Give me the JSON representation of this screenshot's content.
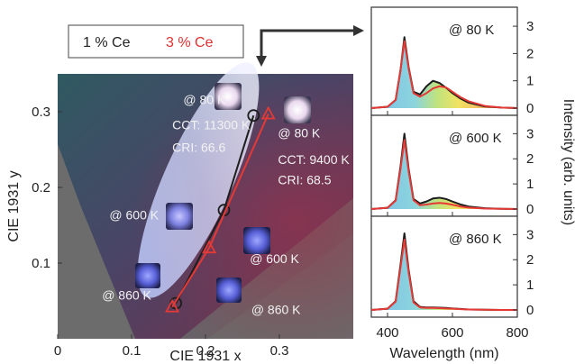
{
  "legend": {
    "items": [
      {
        "label": "1 % Ce",
        "color": "#222222"
      },
      {
        "label": "3 % Ce",
        "color": "#e03030"
      }
    ]
  },
  "colors": {
    "series_1pct": "#1e1e1e",
    "series_3pct": "#e53935",
    "plot_bg": "#6a6a6a"
  },
  "chart_data": [
    {
      "type": "scatter",
      "xlabel": "CIE 1931 x",
      "ylabel": "CIE 1931 y",
      "xlim": [
        0,
        0.4
      ],
      "ylim": [
        0,
        0.35
      ],
      "x_ticks": [
        0,
        0.1,
        0.2,
        0.3
      ],
      "x_tick_labels": [
        "0",
        "0.1",
        "0.2",
        "0.3"
      ],
      "y_ticks": [
        0.1,
        0.2,
        0.3
      ],
      "y_tick_labels": [
        "0.1",
        "0.2",
        "0.3"
      ],
      "series": [
        {
          "name": "1 % Ce",
          "marker": "circle",
          "x": [
            0.16,
            0.225,
            0.265
          ],
          "y": [
            0.047,
            0.17,
            0.295
          ]
        },
        {
          "name": "3 % Ce",
          "marker": "triangle",
          "x": [
            0.155,
            0.205,
            0.285
          ],
          "y": [
            0.042,
            0.12,
            0.297
          ]
        }
      ],
      "annotations": [
        {
          "text": "@ 80 K",
          "x": 0.17,
          "y": 0.31
        },
        {
          "text": "CCT: 11300 K",
          "x": 0.155,
          "y": 0.277
        },
        {
          "text": "CRI: 66.6",
          "x": 0.155,
          "y": 0.247
        },
        {
          "text": "@ 80 K",
          "x": 0.298,
          "y": 0.266
        },
        {
          "text": "CCT: 9400 K",
          "x": 0.298,
          "y": 0.231
        },
        {
          "text": "CRI: 68.5",
          "x": 0.298,
          "y": 0.204
        },
        {
          "text": "@ 600 K",
          "x": 0.07,
          "y": 0.158
        },
        {
          "text": "@ 600 K",
          "x": 0.26,
          "y": 0.1
        },
        {
          "text": "@ 860 K",
          "x": 0.06,
          "y": 0.052
        },
        {
          "text": "@ 860 K",
          "x": 0.262,
          "y": 0.033
        }
      ]
    },
    {
      "type": "line",
      "xlabel": "Wavelength (nm)",
      "ylabel": "Intensity (arb. units)",
      "xlim": [
        350,
        800
      ],
      "x_ticks": [
        400,
        600,
        800
      ],
      "panels": [
        {
          "label": "@ 80 K",
          "ylim": [
            0,
            3.3
          ],
          "y_ticks": [
            0,
            1,
            2,
            3
          ],
          "x": [
            350,
            400,
            425,
            440,
            452,
            465,
            480,
            500,
            520,
            540,
            560,
            580,
            600,
            625,
            650,
            700,
            750,
            800
          ],
          "series": [
            {
              "name": "1 % Ce",
              "values": [
                0,
                0.05,
                0.3,
                1.4,
                2.6,
                1.5,
                0.6,
                0.5,
                0.8,
                1.0,
                0.92,
                0.75,
                0.55,
                0.35,
                0.2,
                0.06,
                0.02,
                0
              ]
            },
            {
              "name": "3 % Ce",
              "values": [
                0,
                0.05,
                0.3,
                1.4,
                2.45,
                1.45,
                0.55,
                0.42,
                0.55,
                0.72,
                0.8,
                0.76,
                0.6,
                0.4,
                0.25,
                0.08,
                0.02,
                0
              ]
            }
          ]
        },
        {
          "label": "@ 600 K",
          "ylim": [
            0,
            3.3
          ],
          "y_ticks": [
            0,
            1,
            2,
            3
          ],
          "x": [
            350,
            400,
            425,
            440,
            452,
            465,
            480,
            500,
            520,
            540,
            560,
            580,
            600,
            625,
            650,
            700,
            750,
            800
          ],
          "series": [
            {
              "name": "1 % Ce",
              "values": [
                0,
                0.05,
                0.35,
                1.7,
                3.0,
                1.6,
                0.4,
                0.22,
                0.3,
                0.42,
                0.45,
                0.4,
                0.3,
                0.18,
                0.1,
                0.03,
                0.01,
                0
              ]
            },
            {
              "name": "3 % Ce",
              "values": [
                0,
                0.05,
                0.33,
                1.6,
                2.75,
                1.5,
                0.35,
                0.15,
                0.18,
                0.22,
                0.24,
                0.22,
                0.17,
                0.1,
                0.06,
                0.02,
                0.01,
                0
              ]
            }
          ]
        },
        {
          "label": "@ 860 K",
          "ylim": [
            0,
            3.3
          ],
          "y_ticks": [
            0,
            1,
            2,
            3
          ],
          "x": [
            350,
            400,
            425,
            440,
            452,
            465,
            480,
            500,
            520,
            540,
            560,
            580,
            600,
            625,
            650,
            700,
            750,
            800
          ],
          "series": [
            {
              "name": "1 % Ce",
              "values": [
                0,
                0.05,
                0.35,
                1.8,
                3.05,
                1.6,
                0.35,
                0.12,
                0.1,
                0.1,
                0.09,
                0.08,
                0.06,
                0.04,
                0.02,
                0.01,
                0,
                0
              ]
            },
            {
              "name": "3 % Ce",
              "values": [
                0,
                0.05,
                0.33,
                1.7,
                2.8,
                1.5,
                0.3,
                0.1,
                0.08,
                0.08,
                0.07,
                0.06,
                0.05,
                0.03,
                0.02,
                0.01,
                0,
                0
              ]
            }
          ]
        }
      ]
    }
  ]
}
